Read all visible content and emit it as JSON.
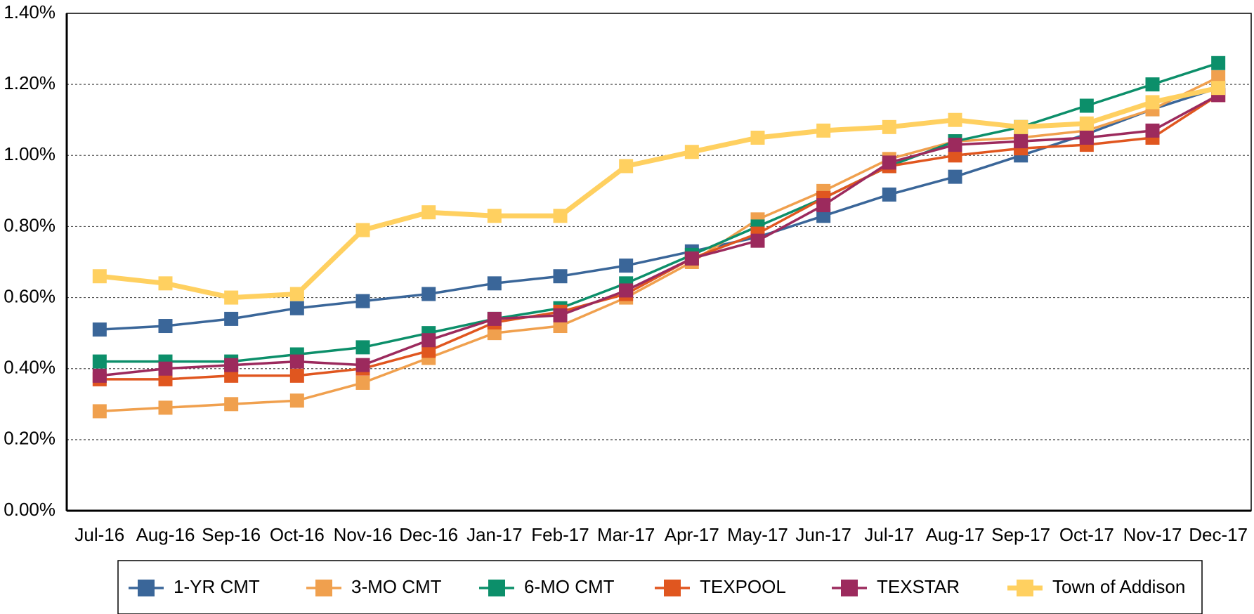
{
  "chart_data": {
    "type": "line",
    "categories": [
      "Jul-16",
      "Aug-16",
      "Sep-16",
      "Oct-16",
      "Nov-16",
      "Dec-16",
      "Jan-17",
      "Feb-17",
      "Mar-17",
      "Apr-17",
      "May-17",
      "Jun-17",
      "Jul-17",
      "Aug-17",
      "Sep-17",
      "Oct-17",
      "Nov-17",
      "Dec-17"
    ],
    "series": [
      {
        "name": "1-YR CMT",
        "color": "#3a6699",
        "values": [
          0.51,
          0.52,
          0.54,
          0.57,
          0.59,
          0.61,
          0.64,
          0.66,
          0.69,
          0.73,
          0.77,
          0.83,
          0.89,
          0.94,
          1.0,
          1.06,
          1.13,
          1.19
        ]
      },
      {
        "name": "3-MO CMT",
        "color": "#f0a04e",
        "values": [
          0.28,
          0.29,
          0.3,
          0.31,
          0.36,
          0.43,
          0.5,
          0.52,
          0.6,
          0.7,
          0.82,
          0.9,
          0.99,
          1.04,
          1.05,
          1.07,
          1.13,
          1.22
        ]
      },
      {
        "name": "6-MO CMT",
        "color": "#0c8f6a",
        "values": [
          0.42,
          0.42,
          0.42,
          0.44,
          0.46,
          0.5,
          0.54,
          0.57,
          0.64,
          0.72,
          0.8,
          0.88,
          0.97,
          1.04,
          1.08,
          1.14,
          1.2,
          1.26
        ]
      },
      {
        "name": "TEXPOOL",
        "color": "#e0561f",
        "values": [
          0.37,
          0.37,
          0.38,
          0.38,
          0.4,
          0.45,
          0.53,
          0.56,
          0.61,
          0.71,
          0.78,
          0.88,
          0.97,
          1.0,
          1.02,
          1.03,
          1.05,
          1.17
        ]
      },
      {
        "name": "TEXSTAR",
        "color": "#9c2a5d",
        "values": [
          0.38,
          0.4,
          0.41,
          0.42,
          0.41,
          0.48,
          0.54,
          0.55,
          0.62,
          0.71,
          0.76,
          0.86,
          0.98,
          1.03,
          1.04,
          1.05,
          1.07,
          1.17
        ]
      },
      {
        "name": "Town of Addison",
        "color": "#ffd060",
        "values": [
          0.66,
          0.64,
          0.6,
          0.61,
          0.79,
          0.84,
          0.83,
          0.83,
          0.97,
          1.01,
          1.05,
          1.07,
          1.08,
          1.1,
          1.08,
          1.09,
          1.15,
          1.19
        ]
      }
    ],
    "ylim": [
      0,
      1.4
    ],
    "yticks": [
      {
        "value": 0,
        "label": "0.00%"
      },
      {
        "value": 0.2,
        "label": "0.20%"
      },
      {
        "value": 0.4,
        "label": "0.40%"
      },
      {
        "value": 0.6,
        "label": "0.60%"
      },
      {
        "value": 0.8,
        "label": "0.80%"
      },
      {
        "value": 1.0,
        "label": "1.00%"
      },
      {
        "value": 1.2,
        "label": "1.20%"
      },
      {
        "value": 1.4,
        "label": "1.40%"
      }
    ],
    "grid": true,
    "legend": "bottom"
  }
}
